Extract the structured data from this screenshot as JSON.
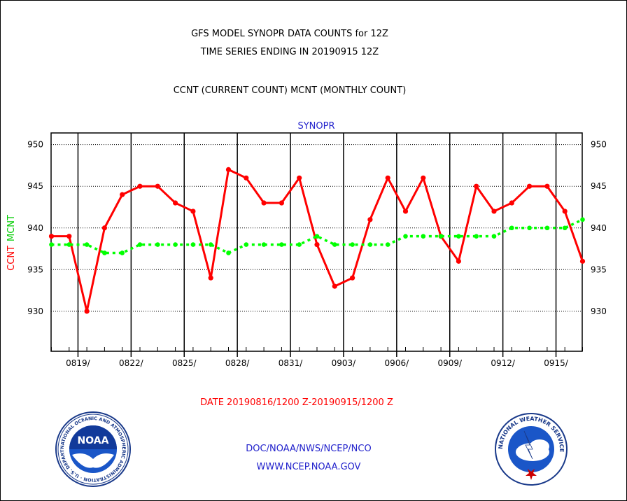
{
  "header": {
    "title_line1": "GFS MODEL SYNOPR DATA COUNTS for 12Z",
    "title_line2": "TIME SERIES ENDING IN 20190915 12Z",
    "subtitle": "CCNT (CURRENT COUNT) MCNT (MONTHLY COUNT)"
  },
  "footer": {
    "date_range": "DATE 20190816/1200 Z-20190915/1200 Z",
    "org_path": "DOC/NOAA/NWS/NCEP/NCO",
    "website": "WWW.NCEP.NOAA.GOV"
  },
  "logos": {
    "noaa_text": "NOAA",
    "noaa_ring": "NATIONAL OCEANIC AND ATMOSPHERIC ADMINISTRATION · U.S. DEPARTMENT OF COMMERCE",
    "nws_ring": "NATIONAL WEATHER SERVICE"
  },
  "colors": {
    "ccnt": "#ff0000",
    "mcnt": "#00ff00",
    "blue_text": "#2222cc"
  },
  "chart_data": {
    "type": "line",
    "title": "SYNOPR",
    "ylabel_left": [
      "CCNT",
      "MCNT"
    ],
    "ylim": [
      925.2,
      951.4
    ],
    "yticks": [
      930,
      935,
      940,
      945,
      950
    ],
    "grid": true,
    "x_start": "20190816/12Z",
    "x_end": "20190915/12Z",
    "x_ticks": [
      "0819/",
      "0822/",
      "0825/",
      "0828/",
      "0831/",
      "0903/",
      "0906/",
      "0909/",
      "0912/",
      "0915/"
    ],
    "series": [
      {
        "name": "CCNT",
        "color": "#ff0000",
        "values": [
          939,
          939,
          930,
          940,
          944,
          945,
          945,
          943,
          942,
          934,
          947,
          946,
          943,
          943,
          946,
          938,
          933,
          934,
          941,
          946,
          942,
          946,
          939,
          936,
          945,
          942,
          943,
          945,
          945,
          942,
          936
        ]
      },
      {
        "name": "MCNT",
        "color": "#00ff00",
        "values": [
          938,
          938,
          938,
          937,
          937,
          938,
          938,
          938,
          938,
          938,
          937,
          938,
          938,
          938,
          938,
          939,
          938,
          938,
          938,
          938,
          939,
          939,
          939,
          939,
          939,
          939,
          940,
          940,
          940,
          940,
          941
        ]
      }
    ]
  }
}
